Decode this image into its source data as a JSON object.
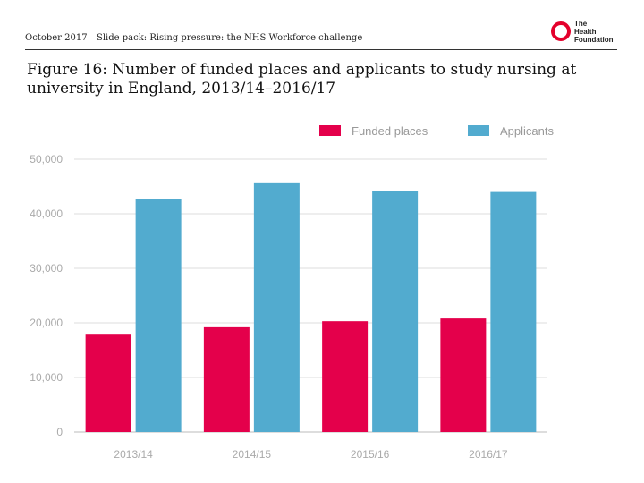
{
  "header": {
    "date": "October 2017",
    "slide_pack": "Slide pack: Rising pressure: the NHS Workforce challenge"
  },
  "logo": {
    "line1": "The",
    "line2": "Health",
    "line3": "Foundation"
  },
  "colors": {
    "accent": "#e4002b",
    "funded": "#e4004b",
    "applicants": "#52abcf",
    "axis_text": "#aaaaaa",
    "grid": "#dddddd"
  },
  "chart_data": {
    "type": "bar",
    "title": "Figure 16: Number of funded places and applicants to study nursing at university in England, 2013/14–2016/17",
    "categories": [
      "2013/14",
      "2014/15",
      "2015/16",
      "2016/17"
    ],
    "series": [
      {
        "name": "Funded places",
        "values": [
          18000,
          19200,
          20300,
          20800
        ]
      },
      {
        "name": "Applicants",
        "values": [
          42700,
          45600,
          44200,
          44000
        ]
      }
    ],
    "yticks": [
      "0",
      "10,000",
      "20,000",
      "30,000",
      "40,000",
      "50,000"
    ],
    "ylim": [
      0,
      50000
    ],
    "xlabel": "",
    "ylabel": "",
    "legend": "top-right",
    "grid": true
  }
}
